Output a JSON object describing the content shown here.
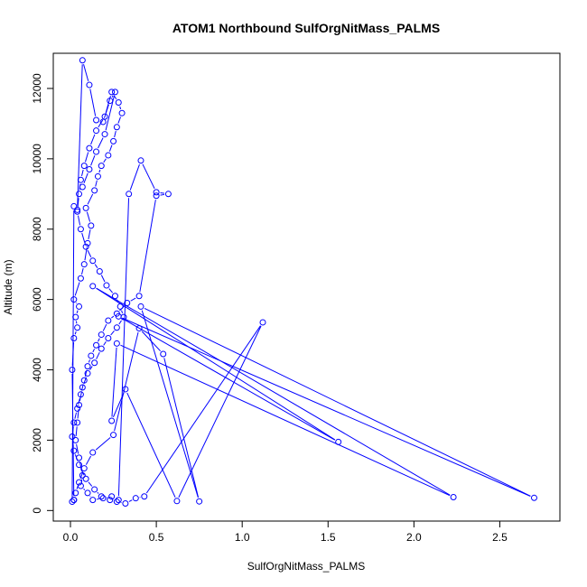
{
  "chart_data": {
    "type": "scatter",
    "title": "ATOM1 Northbound SulfOrgNitMass_PALMS",
    "xlabel": "SulfOrgNitMass_PALMS",
    "ylabel": "Altitude (m)",
    "xlim": [
      -0.1,
      2.85
    ],
    "ylim": [
      -300,
      13000
    ],
    "xticks": [
      0.0,
      0.5,
      1.0,
      1.5,
      2.0,
      2.5
    ],
    "xtick_labels": [
      "0.0",
      "0.5",
      "1.0",
      "1.5",
      "2.0",
      "2.5"
    ],
    "yticks": [
      0,
      2000,
      4000,
      6000,
      8000,
      10000,
      12000
    ],
    "ytick_labels": [
      "0",
      "2000",
      "4000",
      "6000",
      "8000",
      "10000",
      "12000"
    ],
    "series_color": "#0000ff",
    "connected": true,
    "series": [
      {
        "x": [
          0.02,
          0.01,
          0.02,
          0.04,
          0.03,
          0.05,
          0.02,
          0.06,
          0.08,
          0.1,
          0.12,
          0.09,
          0.14,
          0.16,
          0.18,
          0.22,
          0.25,
          0.27,
          0.3,
          0.28,
          0.24,
          0.2,
          0.15,
          0.11,
          0.08,
          0.06,
          0.05,
          0.04,
          0.06,
          0.09,
          0.13,
          0.17,
          0.21,
          0.26,
          0.29,
          0.31,
          0.27,
          0.22,
          0.18,
          0.14,
          0.1,
          0.07,
          0.05,
          0.04,
          0.03,
          0.05,
          0.07,
          0.06,
          0.1,
          0.13,
          0.19,
          0.24,
          0.28,
          0.34,
          0.41,
          0.5,
          0.57,
          0.5,
          0.4,
          0.33,
          0.27,
          0.22,
          0.18,
          0.15,
          0.12,
          0.1,
          0.08,
          0.06,
          0.04,
          0.02,
          0.01,
          0.02,
          0.05,
          0.09,
          0.14,
          0.18,
          0.23,
          0.27,
          0.32,
          0.38,
          0.43,
          1.12,
          0.62,
          0.32,
          0.24,
          0.27,
          2.23,
          0.13,
          1.56,
          0.28,
          2.7,
          0.41,
          0.75,
          0.54,
          0.4,
          0.25,
          0.13,
          0.08,
          0.05,
          0.03,
          0.02,
          0.01,
          0.02,
          0.04,
          0.07,
          0.11,
          0.15,
          0.19,
          0.23,
          0.26,
          0.2,
          0.15,
          0.11,
          0.07
        ],
        "y": [
          300,
          4000,
          4900,
          5200,
          5500,
          5800,
          6000,
          6600,
          7000,
          7600,
          8100,
          8600,
          9100,
          9500,
          9800,
          10100,
          10500,
          10900,
          11300,
          11600,
          11900,
          11200,
          10800,
          10300,
          9800,
          9400,
          9000,
          8500,
          8000,
          7500,
          7100,
          6800,
          6400,
          6100,
          5800,
          5500,
          5200,
          4900,
          4600,
          4200,
          3900,
          3500,
          3000,
          2500,
          2000,
          1500,
          1000,
          700,
          500,
          300,
          350,
          400,
          300,
          9000,
          9950,
          9050,
          9000,
          8950,
          6100,
          5900,
          5600,
          5400,
          5000,
          4700,
          4400,
          4100,
          3700,
          3300,
          2900,
          2500,
          2100,
          1700,
          1300,
          900,
          600,
          400,
          300,
          250,
          200,
          350,
          400,
          5350,
          270,
          3450,
          2550,
          4750,
          380,
          6380,
          1950,
          5520,
          360,
          5800,
          260,
          4450,
          5180,
          2150,
          1650,
          1200,
          800,
          500,
          300,
          250,
          8650,
          8550,
          12800,
          12100,
          11100,
          11050,
          11650,
          11900,
          10700,
          10200,
          9700,
          9200
        ]
      }
    ]
  }
}
